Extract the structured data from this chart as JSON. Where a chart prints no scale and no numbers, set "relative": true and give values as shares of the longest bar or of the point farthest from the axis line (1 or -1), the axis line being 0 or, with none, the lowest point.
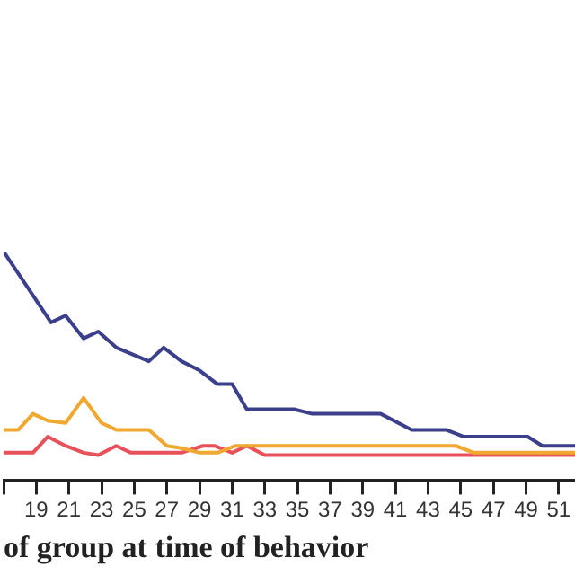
{
  "chart_data": {
    "type": "line",
    "xlabel": "of group at time of behavior",
    "relative": true,
    "xlim": [
      17,
      52
    ],
    "xticks": [
      {
        "value": 17,
        "label": null
      },
      19,
      21,
      23,
      25,
      27,
      29,
      31,
      33,
      35,
      37,
      39,
      41,
      43,
      45,
      47,
      49,
      51
    ],
    "series": [
      {
        "color": "#3b3f8c",
        "x": [
          17,
          18.5,
          19.9,
          20.8,
          21.9,
          22.8,
          23.9,
          25.9,
          26.8,
          27.9,
          29,
          30.1,
          31,
          31.9,
          34.8,
          35.9,
          40.1,
          42,
          44.1,
          45.2,
          49.1,
          50,
          52
        ],
        "values": [
          1,
          0.84,
          0.69,
          0.72,
          0.62,
          0.65,
          0.58,
          0.52,
          0.58,
          0.52,
          0.48,
          0.42,
          0.42,
          0.31,
          0.31,
          0.29,
          0.29,
          0.22,
          0.22,
          0.19,
          0.19,
          0.15,
          0.15
        ]
      },
      {
        "color": "#f0a830",
        "x": [
          17,
          17.9,
          18.8,
          19.7,
          20.8,
          21.9,
          23,
          23.9,
          25.9,
          27,
          27.9,
          29,
          30.1,
          31.2,
          44.7,
          45.8,
          52
        ],
        "values": [
          0.22,
          0.22,
          0.29,
          0.26,
          0.25,
          0.36,
          0.25,
          0.22,
          0.22,
          0.15,
          0.14,
          0.12,
          0.12,
          0.15,
          0.15,
          0.12,
          0.12
        ]
      },
      {
        "color": "#e8505a",
        "x": [
          17,
          18.8,
          19.7,
          20.8,
          21.9,
          22.8,
          23.9,
          24.8,
          27.9,
          29.2,
          29.9,
          31,
          31.9,
          33,
          52
        ],
        "values": [
          0.12,
          0.12,
          0.19,
          0.15,
          0.12,
          0.11,
          0.15,
          0.12,
          0.12,
          0.15,
          0.15,
          0.12,
          0.15,
          0.11,
          0.11
        ]
      }
    ]
  }
}
